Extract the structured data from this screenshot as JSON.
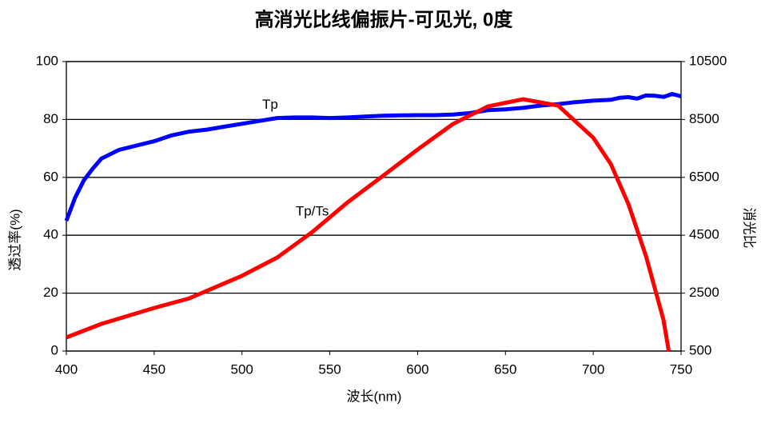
{
  "chart_data": {
    "type": "line",
    "title": "高消光比线偏振片-可见光, 0度",
    "x_label": "波长(nm)",
    "y_label": "透过率(%)",
    "y2_label": "消光比",
    "xlim": [
      400,
      750
    ],
    "xticks": [
      400,
      450,
      500,
      550,
      600,
      650,
      700,
      750
    ],
    "ylim": [
      0,
      100
    ],
    "yticks": [
      0,
      20,
      40,
      60,
      80,
      100
    ],
    "y2lim": [
      500,
      10500
    ],
    "y2ticks": [
      500,
      2500,
      4500,
      6500,
      8500,
      10500
    ],
    "grid": true,
    "annotations": [
      {
        "text": "Tp",
        "x": 516,
        "y": 85
      },
      {
        "text": "Tp/Ts",
        "x": 540,
        "y": 48
      }
    ],
    "series": [
      {
        "name": "Tp",
        "color": "#0000ff",
        "x": [
          400,
          405,
          410,
          415,
          420,
          430,
          440,
          450,
          460,
          470,
          480,
          490,
          500,
          510,
          520,
          530,
          540,
          550,
          560,
          570,
          580,
          590,
          600,
          610,
          620,
          630,
          640,
          650,
          660,
          670,
          680,
          690,
          700,
          710,
          715,
          720,
          725,
          730,
          735,
          740,
          745,
          750
        ],
        "values": [
          45,
          53,
          59,
          63,
          66.5,
          69.5,
          71,
          72.5,
          74.5,
          75.8,
          76.5,
          77.5,
          78.5,
          79.5,
          80.5,
          80.7,
          80.7,
          80.5,
          80.7,
          81,
          81.3,
          81.4,
          81.5,
          81.5,
          81.7,
          82.2,
          83.2,
          83.5,
          84,
          84.8,
          85.3,
          86,
          86.5,
          86.8,
          87.5,
          87.7,
          87.2,
          88.3,
          88.2,
          87.8,
          88.8,
          88
        ]
      },
      {
        "name": "Tp/Ts",
        "color": "#ff0000",
        "axis": "y2",
        "x": [
          400,
          420,
          450,
          470,
          500,
          520,
          540,
          560,
          580,
          600,
          620,
          640,
          660,
          680,
          700,
          710,
          720,
          730,
          740,
          743
        ],
        "values": [
          970,
          1440,
          1990,
          2320,
          3100,
          3730,
          4610,
          5630,
          6540,
          7460,
          8340,
          8950,
          9200,
          8980,
          7870,
          6960,
          5580,
          3780,
          1580,
          500
        ]
      }
    ]
  }
}
